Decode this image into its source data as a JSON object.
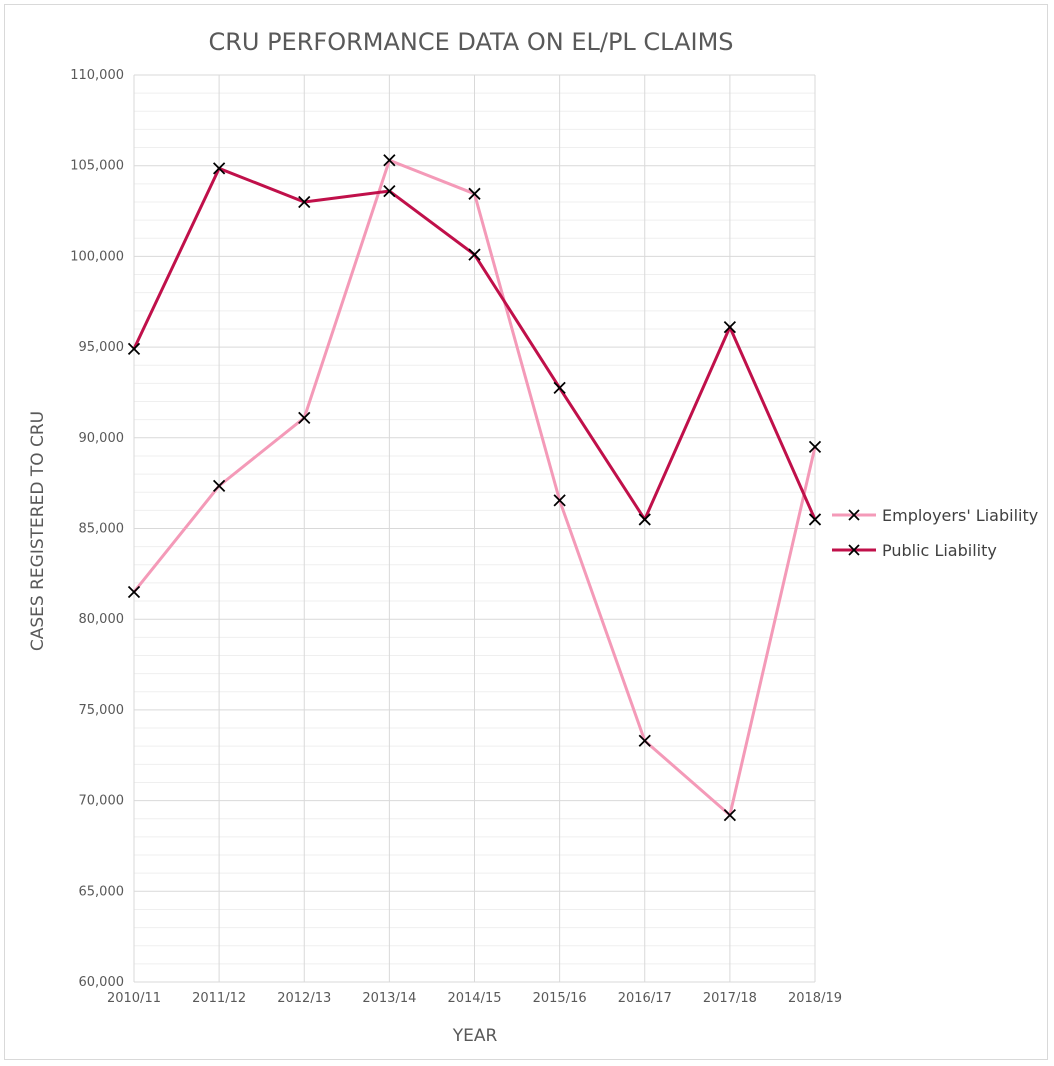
{
  "chart_data": {
    "type": "line",
    "title": "CRU PERFORMANCE DATA ON EL/PL CLAIMS",
    "xlabel": "YEAR",
    "ylabel": "CASES REGISTERED TO CRU",
    "categories": [
      "2010/11",
      "2011/12",
      "2012/13",
      "2013/14",
      "2014/15",
      "2015/16",
      "2016/17",
      "2017/18",
      "2018/19"
    ],
    "ylim": [
      60000,
      110000
    ],
    "yticks": [
      60000,
      65000,
      70000,
      75000,
      80000,
      85000,
      90000,
      95000,
      100000,
      105000,
      110000
    ],
    "ytick_labels": [
      "60,000",
      "65,000",
      "70,000",
      "75,000",
      "80,000",
      "85,000",
      "90,000",
      "95,000",
      "100,000",
      "105,000",
      "110,000"
    ],
    "grid": true,
    "minor_grid": true,
    "legend_position": "right",
    "marker": "x",
    "series": [
      {
        "name": "Employers' Liability",
        "color": "#f49ab8",
        "values": [
          81500,
          87350,
          91100,
          105300,
          103450,
          86550,
          73300,
          69200,
          89500
        ]
      },
      {
        "name": "Public Liability",
        "color": "#c0104a",
        "values": [
          94900,
          104850,
          103000,
          103600,
          100100,
          92750,
          85500,
          96100,
          85500
        ]
      }
    ]
  }
}
